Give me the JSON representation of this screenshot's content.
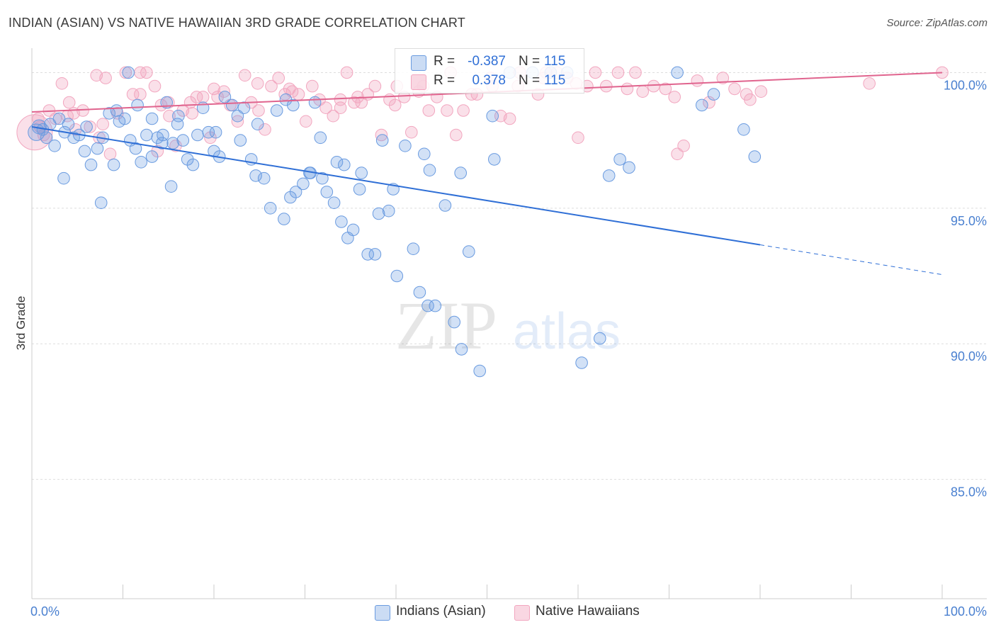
{
  "chart_data": {
    "type": "scatter",
    "title": "INDIAN (ASIAN) VS NATIVE HAWAIIAN 3RD GRADE CORRELATION CHART",
    "source": "Source: ZipAtlas.com",
    "ylabel": "3rd Grade",
    "xlabel": "",
    "xlim": [
      0,
      100
    ],
    "ylim": [
      80.6,
      100.9
    ],
    "x_tick_labels": [
      "0.0%",
      "100.0%"
    ],
    "y_ticks": [
      100,
      95,
      90,
      85
    ],
    "y_tick_labels": [
      "100.0%",
      "95.0%",
      "90.0%",
      "85.0%"
    ],
    "grid": true,
    "watermark": "ZIPatlas",
    "legend_position": "top-center",
    "series": [
      {
        "name": "Indians (Asian)",
        "color": "#6a9be0",
        "line_color": "#2f6fd6",
        "R": "-0.387",
        "N": "115",
        "trend": {
          "x0": 0,
          "y0": 98.0,
          "x1": 80,
          "y1": 93.65,
          "x_dash_end": 100,
          "y_dash_end": 92.55
        },
        "x": [
          0.5,
          0.8,
          1.2,
          1.6,
          2.0,
          2.5,
          3.0,
          3.6,
          4.0,
          4.6,
          5.2,
          5.8,
          6.5,
          7.2,
          7.8,
          8.5,
          9.0,
          9.6,
          10.2,
          10.8,
          11.4,
          12.0,
          12.6,
          13.2,
          13.8,
          14.3,
          14.8,
          15.5,
          16.0,
          16.6,
          17.1,
          17.7,
          18.2,
          18.8,
          19.4,
          20.0,
          20.6,
          21.2,
          22.0,
          22.6,
          23.3,
          24.1,
          24.8,
          25.5,
          26.2,
          26.9,
          27.7,
          28.4,
          29.0,
          29.8,
          30.5,
          31.1,
          31.9,
          32.4,
          33.2,
          34.0,
          34.7,
          35.3,
          36.2,
          36.9,
          37.7,
          38.5,
          39.2,
          40.1,
          41.0,
          41.9,
          42.6,
          43.5,
          44.3,
          45.4,
          46.4,
          47.2,
          48.0,
          49.2,
          50.6,
          52.5,
          55.0,
          57.0,
          58.8,
          60.4,
          62.4,
          63.4,
          64.6,
          65.6,
          70.9,
          73.6,
          74.9,
          78.2,
          79.4,
          36.0,
          39.7,
          43.1,
          47.1,
          10.6,
          11.6,
          6.0,
          14.4,
          9.3,
          27.9,
          30.6,
          24.6,
          15.3,
          22.9,
          28.7,
          31.7,
          34.3,
          33.5,
          43.7,
          7.6,
          3.5,
          13.2,
          16.1,
          20.2,
          38.1,
          50.8
        ],
        "y": [
          97.8,
          98.0,
          97.9,
          97.6,
          98.1,
          97.3,
          98.3,
          97.8,
          98.1,
          97.6,
          97.7,
          97.1,
          96.6,
          97.2,
          97.6,
          98.5,
          96.6,
          98.2,
          98.3,
          97.5,
          97.2,
          96.7,
          97.7,
          98.3,
          97.6,
          97.4,
          98.9,
          97.4,
          98.1,
          97.5,
          96.8,
          96.6,
          97.7,
          98.7,
          97.8,
          97.1,
          96.9,
          99.1,
          98.8,
          98.4,
          98.7,
          96.8,
          98.1,
          96.1,
          95.0,
          98.6,
          94.6,
          95.4,
          95.6,
          95.9,
          96.3,
          98.9,
          96.1,
          95.6,
          95.2,
          94.5,
          93.9,
          94.2,
          96.3,
          93.3,
          93.3,
          97.5,
          94.9,
          92.5,
          97.3,
          93.5,
          91.9,
          91.4,
          91.4,
          95.1,
          90.8,
          89.8,
          93.4,
          89.0,
          98.4,
          100.0,
          100.0,
          100.0,
          100.0,
          89.3,
          90.2,
          96.2,
          96.8,
          96.5,
          100.0,
          98.8,
          99.2,
          97.9,
          96.9,
          95.7,
          95.7,
          97.0,
          96.3,
          100.0,
          98.8,
          98.0,
          97.7,
          98.6,
          99.0,
          96.3,
          96.2,
          95.8,
          97.5,
          98.8,
          97.6,
          96.6,
          96.7,
          96.4,
          95.2,
          96.1,
          96.9,
          98.4,
          97.8,
          94.8,
          96.8
        ],
        "sizes": [
          14,
          12,
          10,
          10,
          10,
          10,
          10,
          10,
          10,
          10,
          10,
          10,
          10,
          10,
          10,
          10,
          10,
          10,
          10,
          10,
          10,
          10,
          10,
          10,
          10,
          10,
          10,
          10,
          10,
          10,
          10,
          10,
          10,
          10,
          10,
          10,
          10,
          10,
          10,
          10,
          10,
          10,
          10,
          10,
          10,
          10,
          10,
          10,
          10,
          10,
          10,
          10,
          10,
          10,
          10,
          10,
          10,
          10,
          10,
          10,
          10,
          10,
          10,
          10,
          10,
          10,
          10,
          10,
          10,
          10,
          10,
          10,
          10,
          10,
          10,
          10,
          10,
          10,
          10,
          10,
          10,
          10,
          10,
          10,
          10,
          10,
          10,
          10,
          10,
          10,
          10,
          10,
          10,
          10,
          10,
          10,
          10,
          10,
          10,
          10,
          10,
          10,
          10,
          10,
          10,
          10,
          10,
          10,
          10,
          10,
          10,
          10,
          10,
          10,
          10
        ]
      },
      {
        "name": "Native Hawaiians",
        "color": "#f2a6bf",
        "line_color": "#e0648e",
        "R": "0.378",
        "N": "115",
        "trend": {
          "x0": 0,
          "y0": 98.55,
          "x1": 100,
          "y1": 100.0
        },
        "x": [
          0.3,
          0.7,
          1.3,
          1.9,
          2.6,
          3.3,
          4.1,
          4.8,
          5.6,
          6.4,
          7.1,
          7.8,
          8.6,
          9.4,
          10.3,
          11.1,
          11.9,
          12.6,
          13.5,
          14.2,
          15.1,
          15.8,
          16.6,
          17.4,
          18.1,
          18.8,
          19.6,
          20.4,
          21.1,
          21.8,
          22.6,
          23.4,
          24.1,
          24.8,
          25.6,
          26.3,
          27.1,
          27.8,
          28.6,
          29.3,
          30.1,
          30.8,
          31.6,
          32.3,
          33.1,
          33.9,
          34.6,
          35.4,
          36.2,
          36.9,
          37.7,
          38.4,
          39.3,
          40.1,
          40.9,
          41.7,
          42.5,
          43.6,
          44.5,
          45.6,
          46.6,
          47.4,
          48.3,
          48.9,
          50.4,
          51.5,
          52.5,
          53.4,
          55.6,
          56.5,
          57.7,
          58.8,
          59.8,
          61.0,
          61.9,
          63.1,
          64.4,
          65.4,
          66.3,
          67.1,
          68.3,
          69.6,
          70.6,
          71.6,
          73.1,
          75.9,
          77.2,
          78.9,
          80.1,
          92.0,
          100.0,
          0.9,
          4.6,
          8.1,
          11.9,
          15.0,
          20.0,
          24.9,
          28.3,
          33.9,
          35.8,
          39.9,
          43.0,
          46.0,
          50.6,
          53.6,
          56.2,
          60.0,
          70.9,
          74.4,
          78.5,
          3.9,
          7.4,
          13.8,
          17.6
        ],
        "y": [
          97.8,
          98.3,
          97.7,
          98.6,
          98.3,
          99.6,
          98.9,
          97.9,
          98.6,
          98.0,
          99.9,
          98.1,
          97.0,
          98.5,
          100.0,
          99.2,
          100.0,
          100.0,
          99.5,
          98.8,
          98.4,
          97.3,
          98.6,
          98.9,
          99.1,
          99.1,
          97.6,
          99.1,
          99.3,
          98.8,
          98.2,
          99.9,
          98.9,
          99.6,
          97.9,
          99.5,
          99.8,
          99.2,
          99.3,
          99.2,
          98.2,
          99.5,
          99.0,
          98.7,
          98.4,
          99.0,
          100.0,
          98.9,
          98.9,
          99.2,
          99.5,
          97.7,
          99.0,
          99.5,
          99.1,
          97.8,
          99.3,
          98.6,
          99.1,
          98.6,
          97.7,
          98.6,
          99.2,
          99.2,
          99.8,
          98.4,
          98.3,
          99.5,
          99.2,
          100.0,
          100.0,
          99.8,
          99.6,
          99.5,
          100.0,
          99.5,
          100.0,
          99.4,
          100.0,
          99.3,
          99.5,
          99.4,
          99.1,
          97.3,
          99.7,
          99.8,
          99.4,
          99.0,
          99.3,
          99.6,
          100.0,
          98.0,
          98.5,
          99.8,
          99.2,
          98.9,
          99.4,
          98.6,
          99.4,
          98.7,
          99.1,
          98.8,
          99.5,
          100.0,
          99.5,
          100.0,
          99.8,
          97.6,
          97.0,
          98.9,
          99.2,
          98.4,
          97.6,
          97.1,
          98.5
        ],
        "sizes": [
          30,
          10,
          10,
          10,
          10,
          10,
          10,
          10,
          10,
          10,
          10,
          10,
          10,
          10,
          10,
          10,
          10,
          10,
          10,
          10,
          10,
          10,
          10,
          10,
          10,
          10,
          10,
          10,
          10,
          10,
          10,
          10,
          10,
          10,
          10,
          10,
          10,
          10,
          10,
          10,
          10,
          10,
          10,
          10,
          10,
          10,
          10,
          10,
          10,
          10,
          10,
          10,
          10,
          10,
          10,
          10,
          10,
          10,
          10,
          10,
          10,
          10,
          10,
          10,
          10,
          10,
          10,
          10,
          10,
          10,
          10,
          10,
          10,
          10,
          10,
          10,
          10,
          10,
          10,
          10,
          10,
          10,
          10,
          10,
          10,
          10,
          10,
          10,
          10,
          10,
          10,
          10,
          10,
          10,
          10,
          10,
          10,
          10,
          10,
          10,
          10,
          10,
          10,
          10,
          10,
          10,
          10,
          10,
          10,
          10,
          10,
          10,
          10,
          10,
          10
        ]
      }
    ]
  },
  "legend": {
    "r_label": "R =",
    "n_label": "N =",
    "series_labels": [
      "Indians (Asian)",
      "Native Hawaiians"
    ]
  }
}
